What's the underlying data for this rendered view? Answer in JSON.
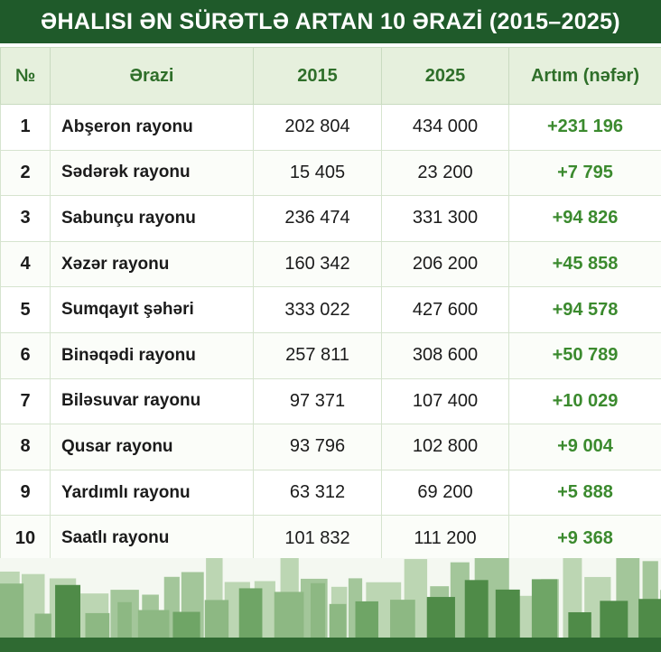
{
  "header": {
    "title": "ƏHALISI ƏN SÜRƏTLƏ ARTAN 10 ƏRAZİ (2015–2025)"
  },
  "table": {
    "columns": [
      "№",
      "Ərazi",
      "2015",
      "2025",
      "Artım (nəfər)"
    ],
    "rows": [
      [
        "1",
        "Abşeron rayonu",
        "202 804",
        "434 000",
        "+231 196"
      ],
      [
        "2",
        "Sədərək rayonu",
        "15 405",
        "23 200",
        "+7 795"
      ],
      [
        "3",
        "Sabunçu rayonu",
        "236 474",
        "331 300",
        "+94 826"
      ],
      [
        "4",
        "Xəzər rayonu",
        "160 342",
        "206 200",
        "+45 858"
      ],
      [
        "5",
        "Sumqayıt şəhəri",
        "333 022",
        "427 600",
        "+94 578"
      ],
      [
        "6",
        "Binəqədi rayonu",
        "257 811",
        "308 600",
        "+50 789"
      ],
      [
        "7",
        "Biləsuvar rayonu",
        "97 371",
        "107 400",
        "+10 029"
      ],
      [
        "8",
        "Qusar rayonu",
        "93 796",
        "102 800",
        "+9 004"
      ],
      [
        "9",
        "Yardımlı rayonu",
        "63 312",
        "69 200",
        "+5 888"
      ],
      [
        "10",
        "Saatlı rayonu",
        "101 832",
        "111 200",
        "+9 368"
      ]
    ]
  }
}
